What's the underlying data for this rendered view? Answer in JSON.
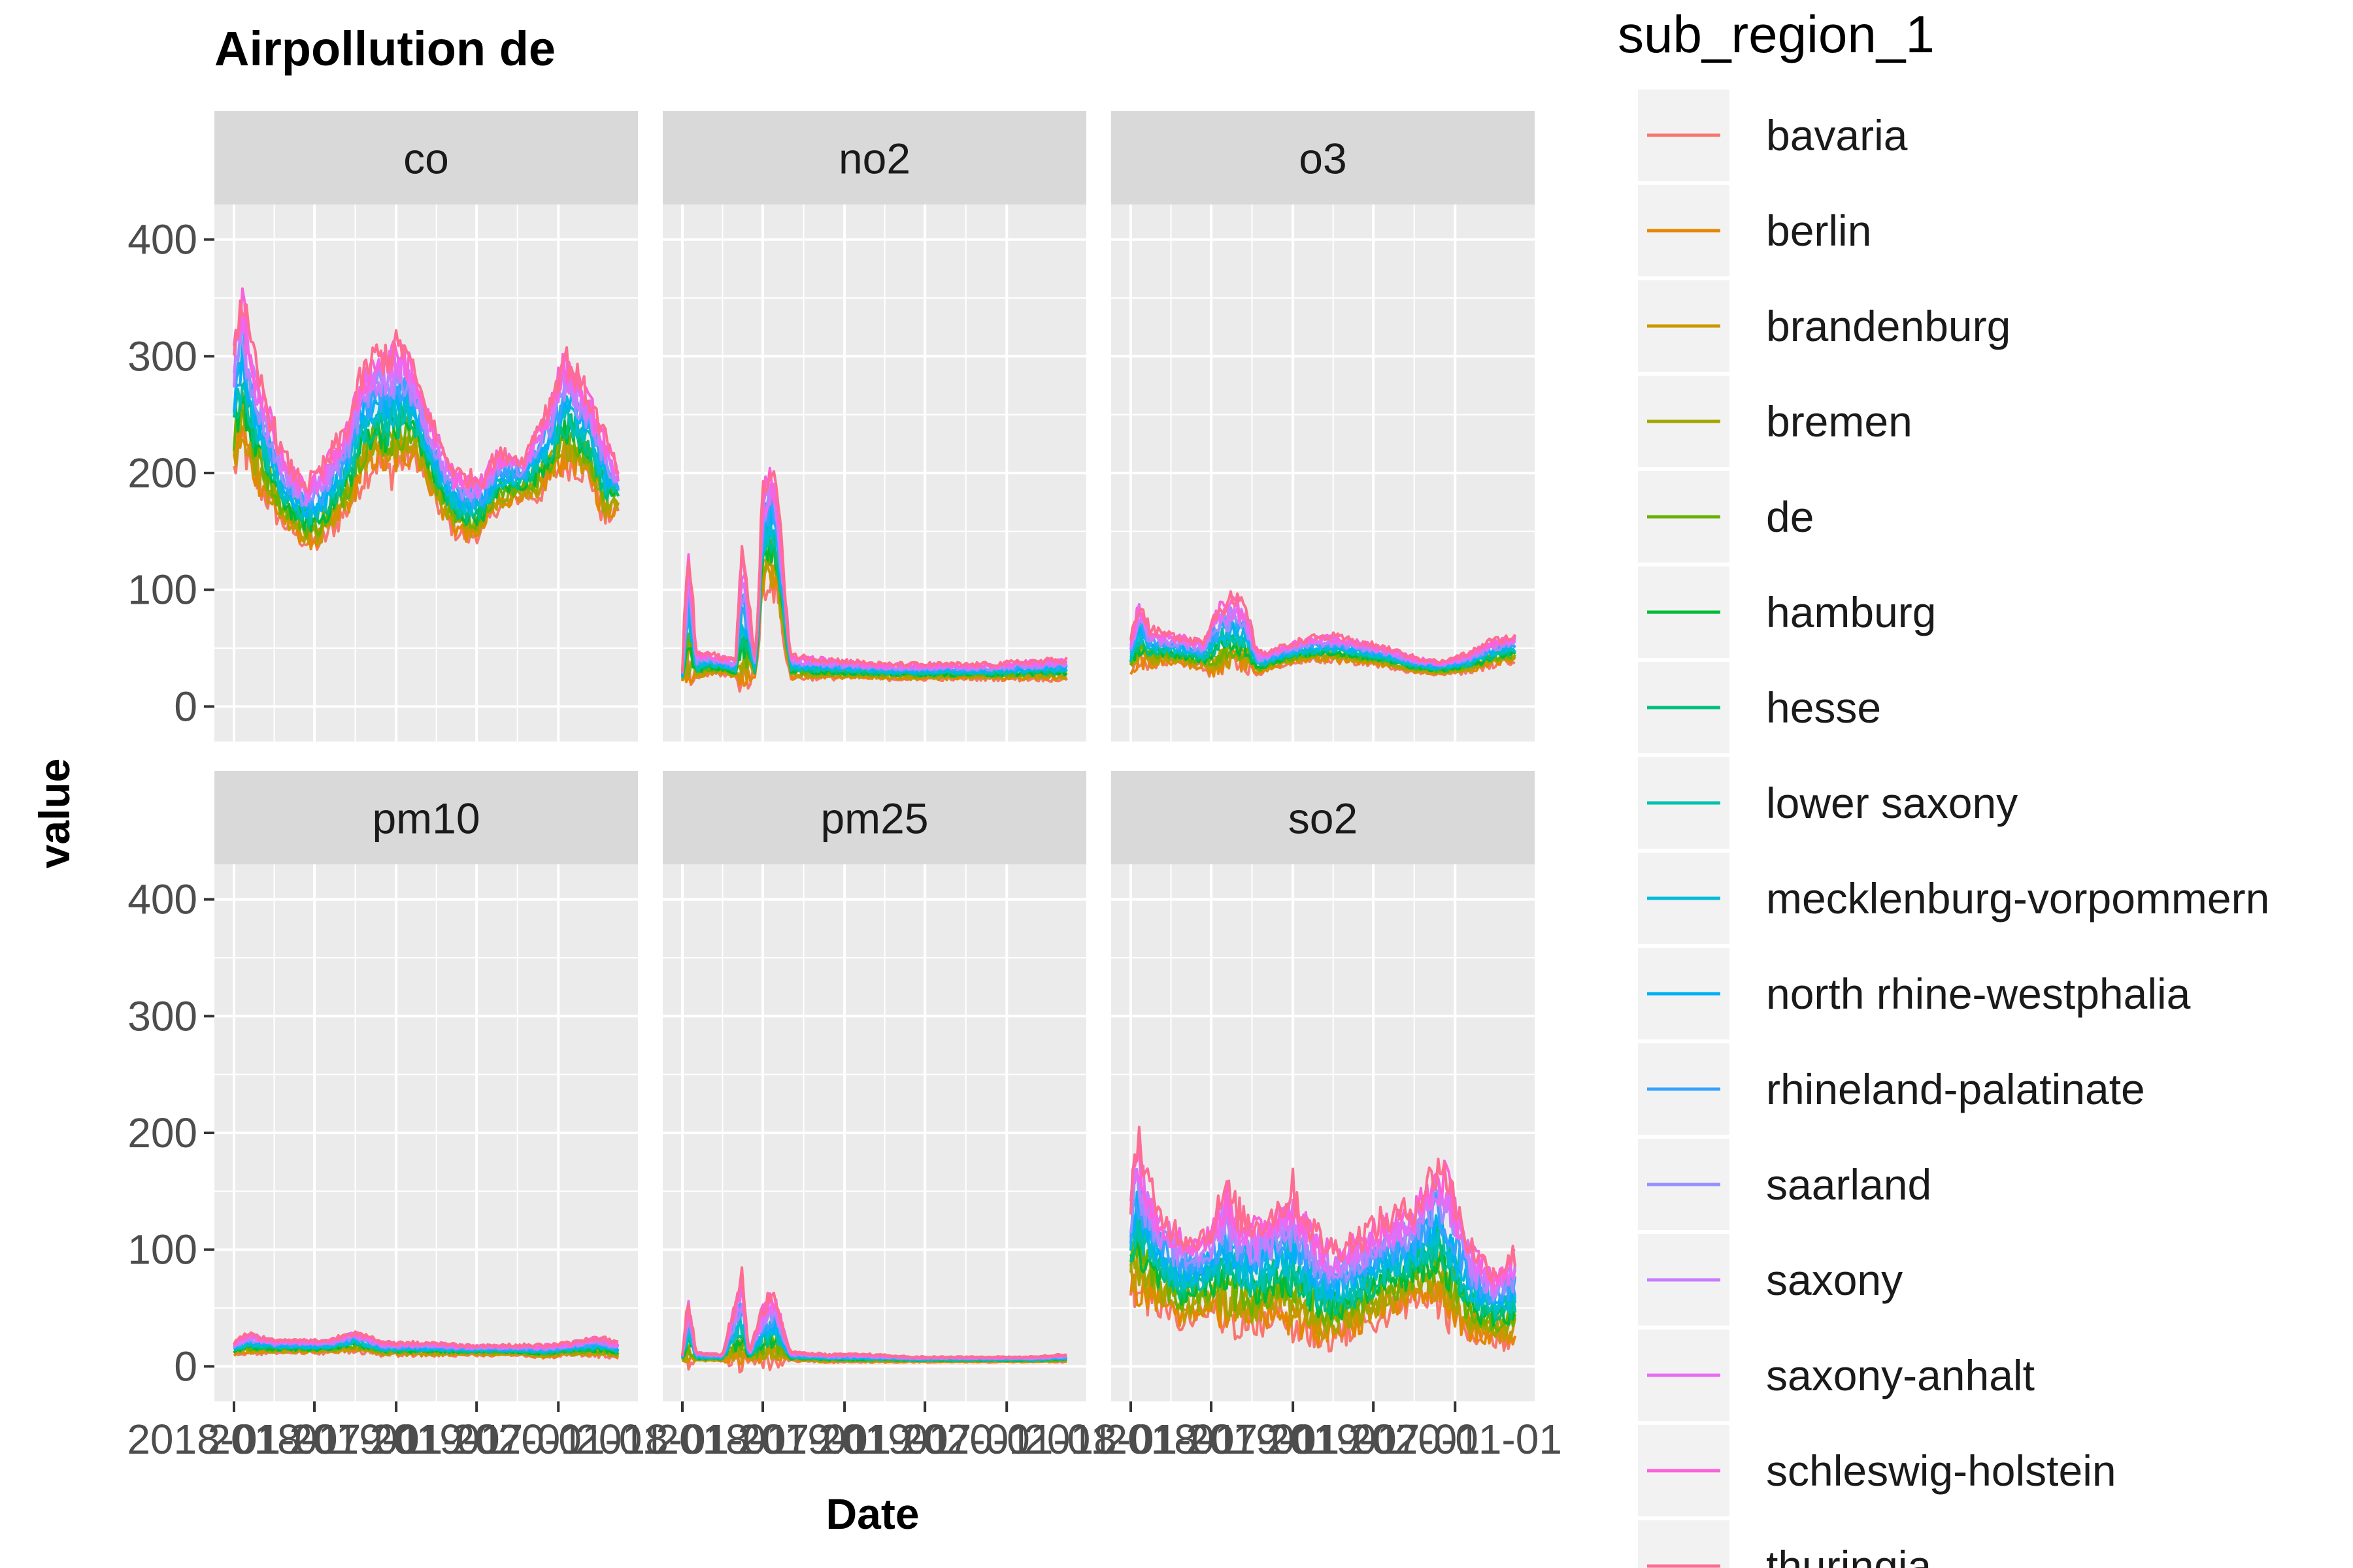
{
  "chart_data": {
    "type": "line",
    "title": "Airpollution de",
    "xlabel": "Date",
    "ylabel": "value",
    "ylim": [
      -30,
      430
    ],
    "y_ticks": [
      0,
      100,
      200,
      300,
      400
    ],
    "x_tick_labels": [
      "2018-01-01",
      "2018-07-01",
      "2019-01-01",
      "2019-07-01",
      "2020-01-01"
    ],
    "x_start": "2018-01-01",
    "x_end": "2020-05-15",
    "grid": true,
    "legend_position": "right",
    "legend_title": "sub_region_1",
    "facets": [
      "co",
      "no2",
      "o3",
      "pm10",
      "pm25",
      "so2"
    ],
    "series": [
      {
        "name": "bavaria",
        "color": "#F8766D"
      },
      {
        "name": "berlin",
        "color": "#E58700"
      },
      {
        "name": "brandenburg",
        "color": "#C99800"
      },
      {
        "name": "bremen",
        "color": "#A3A500"
      },
      {
        "name": "de",
        "color": "#6BB100"
      },
      {
        "name": "hamburg",
        "color": "#00BA38"
      },
      {
        "name": "hesse",
        "color": "#00BF7D"
      },
      {
        "name": "lower saxony",
        "color": "#00C0AF"
      },
      {
        "name": "mecklenburg-vorpommern",
        "color": "#00BCD8"
      },
      {
        "name": "north rhine-westphalia",
        "color": "#00B0F6"
      },
      {
        "name": "rhineland-palatinate",
        "color": "#35A2FF"
      },
      {
        "name": "saarland",
        "color": "#9590FF"
      },
      {
        "name": "saxony",
        "color": "#C77CFF"
      },
      {
        "name": "saxony-anhalt",
        "color": "#E76BF3"
      },
      {
        "name": "schleswig-holstein",
        "color": "#FA62DB"
      },
      {
        "name": "thuringia",
        "color": "#FF6C91"
      }
    ],
    "facet_profiles": {
      "co": {
        "x": [
          "2018-01-01",
          "2018-01-20",
          "2018-02-10",
          "2018-03-15",
          "2018-04-15",
          "2018-05-15",
          "2018-06-15",
          "2018-07-15",
          "2018-09-15",
          "2018-10-15",
          "2018-11-15",
          "2018-12-15",
          "2019-01-15",
          "2019-02-15",
          "2019-03-15",
          "2019-04-15",
          "2019-05-15",
          "2019-06-15",
          "2019-07-15",
          "2019-08-15",
          "2019-09-15",
          "2019-10-15",
          "2019-11-15",
          "2019-12-15",
          "2020-01-15",
          "2020-02-15",
          "2020-03-15",
          "2020-04-15",
          "2020-05-15"
        ],
        "low": [
          200,
          230,
          200,
          180,
          160,
          150,
          140,
          140,
          170,
          195,
          210,
          200,
          210,
          215,
          190,
          165,
          150,
          145,
          150,
          170,
          175,
          180,
          180,
          195,
          210,
          205,
          195,
          160,
          170
        ],
        "high": [
          310,
          350,
          300,
          260,
          220,
          200,
          190,
          200,
          240,
          280,
          300,
          300,
          310,
          280,
          250,
          220,
          200,
          195,
          195,
          215,
          215,
          210,
          240,
          260,
          300,
          280,
          260,
          230,
          200
        ]
      },
      "no2": {
        "x": [
          "2018-01-01",
          "2018-01-15",
          "2018-02-01",
          "2018-03-01",
          "2018-04-01",
          "2018-05-01",
          "2018-05-15",
          "2018-06-15",
          "2018-07-01",
          "2018-07-15",
          "2018-08-01",
          "2018-09-01",
          "2018-10-01",
          "2018-12-01",
          "2019-02-01",
          "2019-04-01",
          "2019-06-01",
          "2019-08-01",
          "2019-10-01",
          "2019-12-01",
          "2020-02-01",
          "2020-05-15"
        ],
        "low": [
          22,
          22,
          25,
          28,
          28,
          25,
          25,
          25,
          100,
          110,
          100,
          25,
          25,
          25,
          25,
          24,
          24,
          24,
          24,
          24,
          24,
          24
        ],
        "high": [
          30,
          140,
          45,
          45,
          42,
          40,
          135,
          40,
          180,
          200,
          190,
          45,
          42,
          40,
          38,
          36,
          36,
          36,
          36,
          36,
          38,
          40
        ]
      },
      "o3": {
        "x": [
          "2018-01-01",
          "2018-01-20",
          "2018-02-15",
          "2018-03-15",
          "2018-04-15",
          "2018-05-15",
          "2018-06-15",
          "2018-07-15",
          "2018-08-15",
          "2018-09-15",
          "2018-10-15",
          "2018-12-01",
          "2019-02-01",
          "2019-04-01",
          "2019-06-01",
          "2019-08-01",
          "2019-10-01",
          "2019-12-01",
          "2020-02-01",
          "2020-03-15",
          "2020-05-15"
        ],
        "low": [
          30,
          35,
          35,
          38,
          38,
          35,
          33,
          30,
          35,
          35,
          28,
          35,
          40,
          40,
          38,
          35,
          30,
          28,
          30,
          35,
          40
        ],
        "high": [
          55,
          90,
          65,
          62,
          60,
          58,
          55,
          85,
          90,
          85,
          45,
          50,
          58,
          60,
          55,
          50,
          42,
          38,
          45,
          55,
          60
        ]
      },
      "pm10": {
        "x": [
          "2018-01-01",
          "2018-02-01",
          "2018-04-01",
          "2018-06-01",
          "2018-08-01",
          "2018-10-01",
          "2018-12-01",
          "2019-02-01",
          "2019-04-01",
          "2019-06-01",
          "2019-08-01",
          "2019-10-01",
          "2019-12-01",
          "2020-02-01",
          "2020-04-01",
          "2020-05-15"
        ],
        "low": [
          10,
          12,
          12,
          12,
          12,
          14,
          10,
          10,
          10,
          10,
          10,
          10,
          8,
          10,
          10,
          8
        ],
        "high": [
          20,
          28,
          22,
          22,
          22,
          30,
          20,
          20,
          20,
          18,
          18,
          18,
          18,
          20,
          25,
          20
        ]
      },
      "pm25": {
        "x": [
          "2018-01-01",
          "2018-01-15",
          "2018-02-01",
          "2018-04-01",
          "2018-05-15",
          "2018-06-01",
          "2018-07-01",
          "2018-07-20",
          "2018-08-01",
          "2018-09-01",
          "2018-12-01",
          "2019-03-01",
          "2019-06-01",
          "2019-09-01",
          "2019-12-01",
          "2020-03-01",
          "2020-05-15"
        ],
        "low": [
          5,
          5,
          5,
          5,
          5,
          5,
          5,
          5,
          5,
          5,
          4,
          4,
          4,
          4,
          4,
          4,
          4
        ],
        "high": [
          10,
          55,
          12,
          10,
          75,
          12,
          50,
          58,
          55,
          12,
          10,
          10,
          8,
          8,
          8,
          8,
          10
        ]
      },
      "so2": {
        "x": [
          "2018-01-01",
          "2018-01-15",
          "2018-02-01",
          "2018-03-01",
          "2018-04-01",
          "2018-05-01",
          "2018-06-01",
          "2018-07-01",
          "2018-08-01",
          "2018-09-01",
          "2018-10-01",
          "2018-11-01",
          "2018-12-01",
          "2019-01-01",
          "2019-02-01",
          "2019-03-01",
          "2019-04-01",
          "2019-05-01",
          "2019-06-01",
          "2019-07-01",
          "2019-08-01",
          "2019-09-01",
          "2019-10-01",
          "2019-11-01",
          "2019-12-01",
          "2020-01-01",
          "2020-02-01",
          "2020-03-01",
          "2020-04-01",
          "2020-05-15"
        ],
        "low": [
          70,
          65,
          60,
          55,
          45,
          40,
          45,
          50,
          40,
          38,
          35,
          40,
          45,
          35,
          30,
          25,
          25,
          30,
          35,
          40,
          45,
          50,
          55,
          60,
          55,
          40,
          30,
          25,
          22,
          25
        ],
        "high": [
          140,
          200,
          170,
          130,
          120,
          110,
          110,
          115,
          150,
          130,
          120,
          125,
          135,
          150,
          125,
          110,
          100,
          105,
          110,
          120,
          125,
          130,
          135,
          155,
          175,
          140,
          105,
          90,
          80,
          95
        ]
      }
    }
  }
}
